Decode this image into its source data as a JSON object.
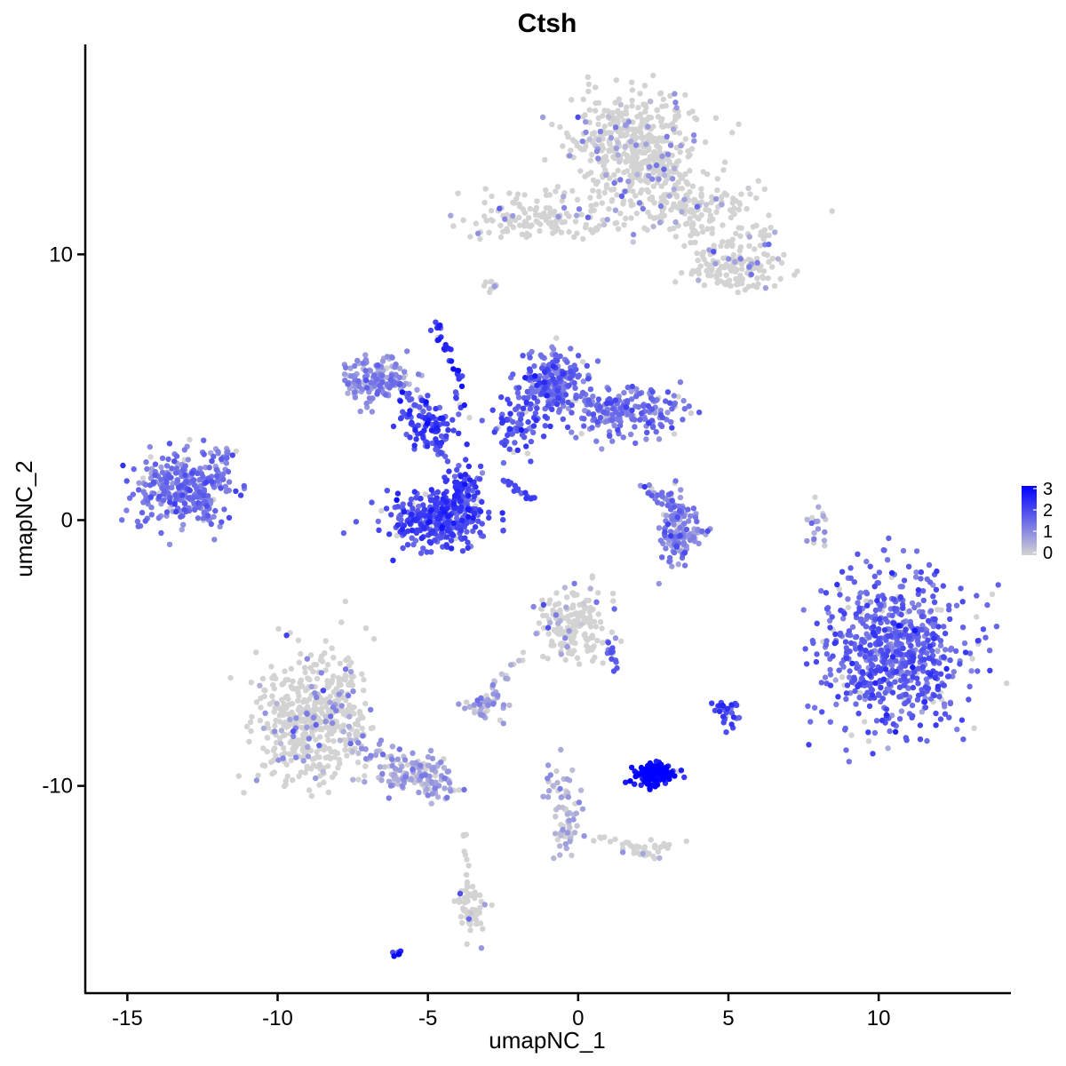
{
  "chart_data": {
    "type": "scatter",
    "title": "Ctsh",
    "xlabel": "umapNC_1",
    "ylabel": "umapNC_2",
    "xlim": [
      -16.4,
      14.4
    ],
    "ylim": [
      -17.8,
      17.9
    ],
    "xticks": [
      -15,
      -10,
      -5,
      0,
      5,
      10
    ],
    "xtick_labels": [
      "-15",
      "-10",
      "-5",
      "0",
      "5",
      "10"
    ],
    "yticks": [
      -10,
      0,
      10
    ],
    "ytick_labels": [
      "-10",
      "0",
      "10"
    ],
    "grid": false,
    "legend": {
      "position": "right",
      "type": "colorbar",
      "min": 0,
      "max": 3,
      "ticks": [
        0,
        1,
        2,
        3
      ],
      "tick_labels": [
        "0",
        "1",
        "2",
        "3"
      ],
      "low_color": "#D3D3D3",
      "high_color": "#0000FF"
    },
    "clusters": [
      {
        "cx": 1.8,
        "cy": 14.2,
        "sx": 1.1,
        "sy": 0.9,
        "n": 420,
        "expr": 0.1
      },
      {
        "cx": 3.0,
        "cy": 11.9,
        "sx": 1.4,
        "sy": 0.6,
        "n": 140,
        "expr": 0.15
      },
      {
        "cx": 5.4,
        "cy": 9.6,
        "sx": 0.7,
        "sy": 0.5,
        "n": 130,
        "expr": 0.1
      },
      {
        "cx": -1.5,
        "cy": 11.6,
        "sx": 1.2,
        "sy": 0.4,
        "n": 90,
        "expr": 0.3
      },
      {
        "cx": -13.2,
        "cy": 1.2,
        "sx": 0.8,
        "sy": 0.7,
        "n": 300,
        "expr": 1.3
      },
      {
        "cx": -6.8,
        "cy": 5.3,
        "sx": 0.6,
        "sy": 0.45,
        "n": 150,
        "expr": 1.0
      },
      {
        "cx": -5.0,
        "cy": 3.6,
        "sx": 0.5,
        "sy": 0.4,
        "n": 90,
        "expr": 2.0
      },
      {
        "cx": -4.7,
        "cy": 0.0,
        "sx": 0.8,
        "sy": 0.5,
        "n": 320,
        "expr": 1.9
      },
      {
        "cx": -3.9,
        "cy": 1.0,
        "sx": 0.3,
        "sy": 0.5,
        "n": 90,
        "expr": 2.0
      },
      {
        "cx": -0.8,
        "cy": 5.2,
        "sx": 0.5,
        "sy": 0.6,
        "n": 220,
        "expr": 1.6
      },
      {
        "cx": 1.6,
        "cy": 4.1,
        "sx": 0.9,
        "sy": 0.5,
        "n": 200,
        "expr": 1.3
      },
      {
        "cx": -2.0,
        "cy": 3.7,
        "sx": 0.5,
        "sy": 0.7,
        "n": 60,
        "expr": 1.8
      },
      {
        "cx": 3.3,
        "cy": -0.4,
        "sx": 0.3,
        "sy": 0.7,
        "n": 110,
        "expr": 1.2
      },
      {
        "cx": 10.5,
        "cy": -5.0,
        "sx": 1.2,
        "sy": 1.5,
        "n": 700,
        "expr": 1.6
      },
      {
        "cx": -8.9,
        "cy": -7.6,
        "sx": 0.9,
        "sy": 1.2,
        "n": 450,
        "expr": 0.2
      },
      {
        "cx": -5.4,
        "cy": -9.6,
        "sx": 0.8,
        "sy": 0.4,
        "n": 100,
        "expr": 0.6
      },
      {
        "cx": -0.2,
        "cy": -3.9,
        "sx": 0.6,
        "sy": 0.7,
        "n": 170,
        "expr": 0.3
      },
      {
        "cx": -3.1,
        "cy": -7.0,
        "sx": 0.3,
        "sy": 0.25,
        "n": 40,
        "expr": 0.7
      },
      {
        "cx": 2.5,
        "cy": -9.6,
        "sx": 0.35,
        "sy": 0.22,
        "n": 140,
        "expr": 2.9
      },
      {
        "cx": 5.0,
        "cy": -7.3,
        "sx": 0.2,
        "sy": 0.3,
        "n": 28,
        "expr": 2.0
      },
      {
        "cx": -0.4,
        "cy": -11.2,
        "sx": 0.3,
        "sy": 0.8,
        "n": 50,
        "expr": 0.5
      },
      {
        "cx": 2.3,
        "cy": -12.5,
        "sx": 0.4,
        "sy": 0.2,
        "n": 25,
        "expr": 0.2
      },
      {
        "cx": -3.6,
        "cy": -14.5,
        "sx": 0.2,
        "sy": 0.6,
        "n": 60,
        "expr": 0.3
      },
      {
        "cx": 8.0,
        "cy": -0.2,
        "sx": 0.15,
        "sy": 0.5,
        "n": 20,
        "expr": 0.6
      },
      {
        "cx": -2.9,
        "cy": 8.8,
        "sx": 0.15,
        "sy": 0.15,
        "n": 10,
        "expr": 0.2
      },
      {
        "cx": -6.0,
        "cy": -16.3,
        "sx": 0.1,
        "sy": 0.08,
        "n": 6,
        "expr": 2.2
      },
      {
        "cx": -11.8,
        "cy": 2.2,
        "sx": 0.25,
        "sy": 0.4,
        "n": 18,
        "expr": 1.1
      },
      {
        "cx": -12.4,
        "cy": 0.1,
        "sx": 0.1,
        "sy": 0.1,
        "n": 10,
        "expr": 1.3
      }
    ],
    "streaks": [
      {
        "x0": -4.8,
        "y0": 7.5,
        "x1": -4.0,
        "y1": 5.5,
        "n": 26,
        "expr": 2.2,
        "w": 0.08
      },
      {
        "x0": -4.0,
        "y0": 5.5,
        "x1": -3.9,
        "y1": 4.0,
        "n": 12,
        "expr": 1.9,
        "w": 0.08
      },
      {
        "x0": -2.5,
        "y0": 1.5,
        "x1": -1.4,
        "y1": 0.7,
        "n": 20,
        "expr": 1.9,
        "w": 0.06
      },
      {
        "x0": -2.3,
        "y0": 2.8,
        "x1": -2.0,
        "y1": 4.0,
        "n": 16,
        "expr": 1.6,
        "w": 0.12
      },
      {
        "x0": -4.5,
        "y0": 2.3,
        "x1": -4.7,
        "y1": 3.3,
        "n": 14,
        "expr": 1.8,
        "w": 0.12
      },
      {
        "x0": -12.2,
        "y0": 1.2,
        "x1": -11.6,
        "y1": 2.7,
        "n": 14,
        "expr": 1.1,
        "w": 0.1
      },
      {
        "x0": -6.0,
        "y0": 5.2,
        "x1": -5.0,
        "y1": 4.0,
        "n": 18,
        "expr": 1.7,
        "w": 0.2
      },
      {
        "x0": 2.7,
        "y0": -0.7,
        "x1": 4.3,
        "y1": -0.5,
        "n": 30,
        "expr": 0.9,
        "w": 0.15
      },
      {
        "x0": 2.3,
        "y0": 1.2,
        "x1": 3.2,
        "y1": 0.6,
        "n": 20,
        "expr": 1.3,
        "w": 0.15
      },
      {
        "x0": 0.9,
        "y0": -4.5,
        "x1": 1.3,
        "y1": -5.6,
        "n": 16,
        "expr": 1.4,
        "w": 0.1
      },
      {
        "x0": -7.8,
        "y0": -8.4,
        "x1": -4.0,
        "y1": -10.3,
        "n": 70,
        "expr": 0.7,
        "w": 0.25
      },
      {
        "x0": -3.4,
        "y0": -6.9,
        "x1": -1.8,
        "y1": -5.1,
        "n": 16,
        "expr": 0.5,
        "w": 0.12
      },
      {
        "x0": 0.6,
        "y0": -11.8,
        "x1": 2.3,
        "y1": -12.5,
        "n": 16,
        "expr": 0.3,
        "w": 0.1
      },
      {
        "x0": -3.8,
        "y0": 10.7,
        "x1": 0.9,
        "y1": 11.1,
        "n": 40,
        "expr": 0.3,
        "w": 0.2
      },
      {
        "x0": 2.4,
        "y0": 14.0,
        "x1": 4.2,
        "y1": 10.6,
        "n": 60,
        "expr": 0.2,
        "w": 0.35
      },
      {
        "x0": 3.9,
        "y0": 11.6,
        "x1": 5.6,
        "y1": 12.1,
        "n": 26,
        "expr": 0.25,
        "w": 0.3
      },
      {
        "x0": 6.1,
        "y0": 11.2,
        "x1": 6.3,
        "y1": 10.4,
        "n": 12,
        "expr": 0.3,
        "w": 0.15
      },
      {
        "x0": 4.3,
        "y0": 10.2,
        "x1": 4.0,
        "y1": 9.2,
        "n": 14,
        "expr": 0.15,
        "w": 0.2
      },
      {
        "x0": -8.3,
        "y0": -5.2,
        "x1": -7.4,
        "y1": -8.0,
        "n": 40,
        "expr": 0.2,
        "w": 0.3
      },
      {
        "x0": -0.8,
        "y0": -9.5,
        "x1": -0.2,
        "y1": -12.4,
        "n": 24,
        "expr": 0.4,
        "w": 0.15
      },
      {
        "x0": -3.8,
        "y0": -11.8,
        "x1": -3.7,
        "y1": -13.4,
        "n": 8,
        "expr": 0.2,
        "w": 0.05
      }
    ]
  }
}
